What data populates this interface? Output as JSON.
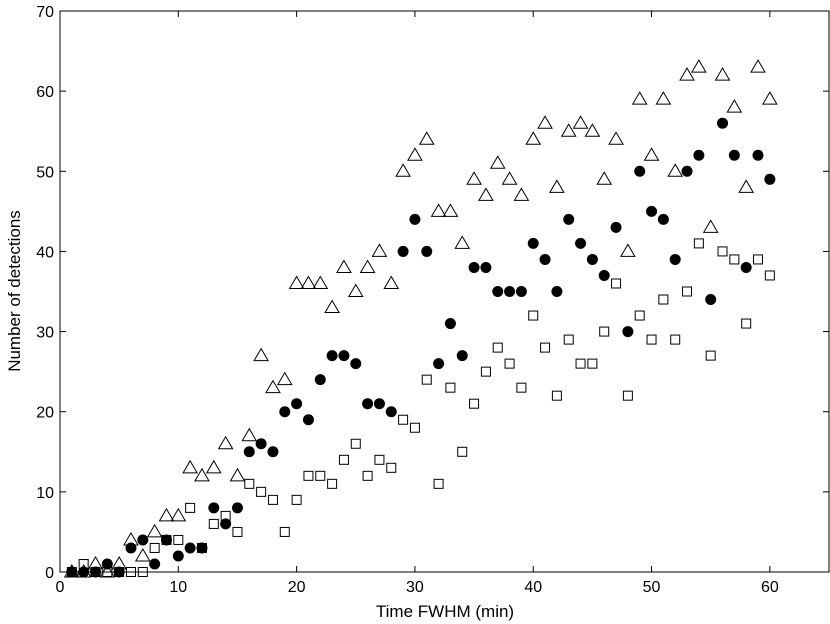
{
  "chart_data": {
    "type": "scatter",
    "title": "",
    "xlabel": "Time FWHM (min)",
    "ylabel": "Number of detections",
    "xlim": [
      0,
      65
    ],
    "ylim": [
      0,
      70
    ],
    "xticks": [
      0,
      10,
      20,
      30,
      40,
      50,
      60
    ],
    "yticks": [
      0,
      10,
      20,
      30,
      40,
      50,
      60,
      70
    ],
    "grid": false,
    "legend": "none",
    "series": [
      {
        "marker": "triangle-open",
        "color": "#000000",
        "points": [
          [
            1,
            0
          ],
          [
            2,
            0
          ],
          [
            3,
            1
          ],
          [
            4,
            0
          ],
          [
            5,
            1
          ],
          [
            6,
            4
          ],
          [
            7,
            2
          ],
          [
            8,
            5
          ],
          [
            9,
            7
          ],
          [
            10,
            7
          ],
          [
            11,
            13
          ],
          [
            12,
            12
          ],
          [
            13,
            13
          ],
          [
            14,
            16
          ],
          [
            15,
            12
          ],
          [
            16,
            17
          ],
          [
            17,
            27
          ],
          [
            18,
            23
          ],
          [
            19,
            24
          ],
          [
            20,
            36
          ],
          [
            21,
            36
          ],
          [
            22,
            36
          ],
          [
            23,
            33
          ],
          [
            24,
            38
          ],
          [
            25,
            35
          ],
          [
            26,
            38
          ],
          [
            27,
            40
          ],
          [
            28,
            36
          ],
          [
            29,
            50
          ],
          [
            30,
            52
          ],
          [
            31,
            54
          ],
          [
            32,
            45
          ],
          [
            33,
            45
          ],
          [
            34,
            41
          ],
          [
            35,
            49
          ],
          [
            36,
            47
          ],
          [
            37,
            51
          ],
          [
            38,
            49
          ],
          [
            39,
            47
          ],
          [
            40,
            54
          ],
          [
            41,
            56
          ],
          [
            42,
            48
          ],
          [
            43,
            55
          ],
          [
            44,
            56
          ],
          [
            45,
            55
          ],
          [
            46,
            49
          ],
          [
            47,
            54
          ],
          [
            48,
            40
          ],
          [
            49,
            59
          ],
          [
            50,
            52
          ],
          [
            51,
            59
          ],
          [
            52,
            50
          ],
          [
            53,
            62
          ],
          [
            54,
            63
          ],
          [
            55,
            43
          ],
          [
            56,
            62
          ],
          [
            57,
            58
          ],
          [
            58,
            48
          ],
          [
            59,
            63
          ],
          [
            60,
            59
          ]
        ]
      },
      {
        "marker": "circle-filled",
        "color": "#000000",
        "points": [
          [
            1,
            0
          ],
          [
            2,
            0
          ],
          [
            3,
            0
          ],
          [
            4,
            1
          ],
          [
            5,
            0
          ],
          [
            6,
            3
          ],
          [
            7,
            4
          ],
          [
            8,
            1
          ],
          [
            9,
            4
          ],
          [
            10,
            2
          ],
          [
            11,
            3
          ],
          [
            12,
            3
          ],
          [
            13,
            8
          ],
          [
            14,
            6
          ],
          [
            15,
            8
          ],
          [
            16,
            15
          ],
          [
            17,
            16
          ],
          [
            18,
            15
          ],
          [
            19,
            20
          ],
          [
            20,
            21
          ],
          [
            21,
            19
          ],
          [
            22,
            24
          ],
          [
            23,
            27
          ],
          [
            24,
            27
          ],
          [
            25,
            26
          ],
          [
            26,
            21
          ],
          [
            27,
            21
          ],
          [
            28,
            20
          ],
          [
            29,
            40
          ],
          [
            30,
            44
          ],
          [
            31,
            40
          ],
          [
            32,
            26
          ],
          [
            33,
            31
          ],
          [
            34,
            27
          ],
          [
            35,
            38
          ],
          [
            36,
            38
          ],
          [
            37,
            35
          ],
          [
            38,
            35
          ],
          [
            39,
            35
          ],
          [
            40,
            41
          ],
          [
            41,
            39
          ],
          [
            42,
            35
          ],
          [
            43,
            44
          ],
          [
            44,
            41
          ],
          [
            45,
            39
          ],
          [
            46,
            37
          ],
          [
            47,
            43
          ],
          [
            48,
            30
          ],
          [
            49,
            50
          ],
          [
            50,
            45
          ],
          [
            51,
            44
          ],
          [
            52,
            39
          ],
          [
            53,
            50
          ],
          [
            54,
            52
          ],
          [
            55,
            34
          ],
          [
            56,
            56
          ],
          [
            57,
            52
          ],
          [
            58,
            38
          ],
          [
            59,
            52
          ],
          [
            60,
            49
          ]
        ]
      },
      {
        "marker": "square-open",
        "color": "#000000",
        "points": [
          [
            1,
            0
          ],
          [
            2,
            1
          ],
          [
            3,
            0
          ],
          [
            4,
            0
          ],
          [
            5,
            0
          ],
          [
            6,
            0
          ],
          [
            7,
            0
          ],
          [
            8,
            3
          ],
          [
            9,
            4
          ],
          [
            10,
            4
          ],
          [
            11,
            8
          ],
          [
            12,
            3
          ],
          [
            13,
            6
          ],
          [
            14,
            7
          ],
          [
            15,
            5
          ],
          [
            16,
            11
          ],
          [
            17,
            10
          ],
          [
            18,
            9
          ],
          [
            19,
            5
          ],
          [
            20,
            9
          ],
          [
            21,
            12
          ],
          [
            22,
            12
          ],
          [
            23,
            11
          ],
          [
            24,
            14
          ],
          [
            25,
            16
          ],
          [
            26,
            12
          ],
          [
            27,
            14
          ],
          [
            28,
            13
          ],
          [
            29,
            19
          ],
          [
            30,
            18
          ],
          [
            31,
            24
          ],
          [
            32,
            11
          ],
          [
            33,
            23
          ],
          [
            34,
            15
          ],
          [
            35,
            21
          ],
          [
            36,
            25
          ],
          [
            37,
            28
          ],
          [
            38,
            26
          ],
          [
            39,
            23
          ],
          [
            40,
            32
          ],
          [
            41,
            28
          ],
          [
            42,
            22
          ],
          [
            43,
            29
          ],
          [
            44,
            26
          ],
          [
            45,
            26
          ],
          [
            46,
            30
          ],
          [
            47,
            36
          ],
          [
            48,
            22
          ],
          [
            49,
            32
          ],
          [
            50,
            29
          ],
          [
            51,
            34
          ],
          [
            52,
            29
          ],
          [
            53,
            35
          ],
          [
            54,
            41
          ],
          [
            55,
            27
          ],
          [
            56,
            40
          ],
          [
            57,
            39
          ],
          [
            58,
            31
          ],
          [
            59,
            39
          ],
          [
            60,
            37
          ]
        ]
      }
    ]
  }
}
